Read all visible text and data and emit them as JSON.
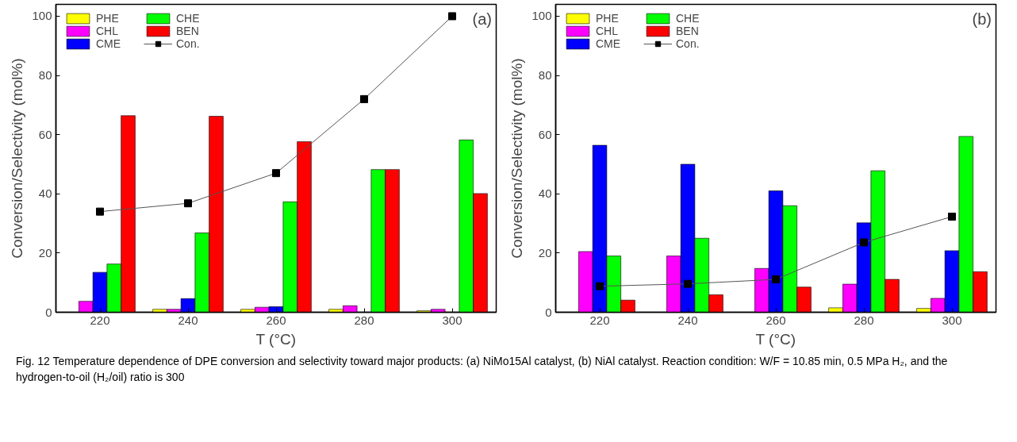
{
  "chart_data": [
    {
      "type": "bar",
      "xlabel": "T (°C)",
      "ylabel": "Conversion/Selectivity (mol%)",
      "categories": [
        "220",
        "240",
        "260",
        "280",
        "300"
      ],
      "ylim": [
        0,
        104
      ],
      "yticks": [
        0,
        20,
        40,
        60,
        80,
        100
      ],
      "grid": false,
      "legend": "top left",
      "series": [
        {
          "name": "PHE",
          "color": "#ffff00",
          "values": [
            null,
            1,
            1,
            1,
            0.5
          ]
        },
        {
          "name": "CHL",
          "color": "#ff00ff",
          "values": [
            3.7,
            1,
            1.7,
            2.2,
            1
          ]
        },
        {
          "name": "CME",
          "color": "#0000ff",
          "values": [
            13.5,
            4.6,
            1.9,
            null,
            null
          ]
        },
        {
          "name": "CHE",
          "color": "#00ff00",
          "values": [
            16.3,
            26.8,
            37.3,
            48.2,
            58.2
          ]
        },
        {
          "name": "BEN",
          "color": "#ff0000",
          "values": [
            66.4,
            66.2,
            57.6,
            48.2,
            40.1
          ]
        },
        {
          "name": "Con.",
          "type": "line",
          "color": "#000000",
          "marker": "square",
          "values": [
            34,
            36.8,
            47,
            72,
            100
          ]
        }
      ],
      "annotations": [
        "(a)",
        "Fig. 12 Temperature dependence of DPE conversion and selectivity toward major products: (a) NiMo15Al catalyst, (b) NiAl catalyst. Reaction condition: W/F = 10.85 min, 0.5 MPa H₂, and the hydrogen-to-oil (H₂/oil) ratio is 300"
      ]
    },
    {
      "type": "bar",
      "xlabel": "T (°C)",
      "ylabel": "Conversion/Selectivity (mol%)",
      "categories": [
        "220",
        "240",
        "260",
        "280",
        "300"
      ],
      "ylim": [
        0,
        104
      ],
      "yticks": [
        0,
        20,
        40,
        60,
        80,
        100
      ],
      "grid": false,
      "legend": "top left",
      "series": [
        {
          "name": "PHE",
          "color": "#ffff00",
          "values": [
            null,
            null,
            null,
            1.5,
            1.3
          ]
        },
        {
          "name": "CHL",
          "color": "#ff00ff",
          "values": [
            20.5,
            19,
            14.8,
            9.5,
            4.7
          ]
        },
        {
          "name": "CME",
          "color": "#0000ff",
          "values": [
            56.4,
            50,
            41,
            30.2,
            20.8
          ]
        },
        {
          "name": "CHE",
          "color": "#00ff00",
          "values": [
            19,
            25,
            36,
            47.8,
            59.4
          ]
        },
        {
          "name": "BEN",
          "color": "#ff0000",
          "values": [
            4.1,
            5.9,
            8.5,
            11.1,
            13.7
          ]
        },
        {
          "name": "Con.",
          "type": "line",
          "color": "#000000",
          "marker": "square",
          "values": [
            8.8,
            9.6,
            11.1,
            23.6,
            32.3
          ]
        }
      ],
      "annotations": [
        "(b)"
      ]
    }
  ]
}
